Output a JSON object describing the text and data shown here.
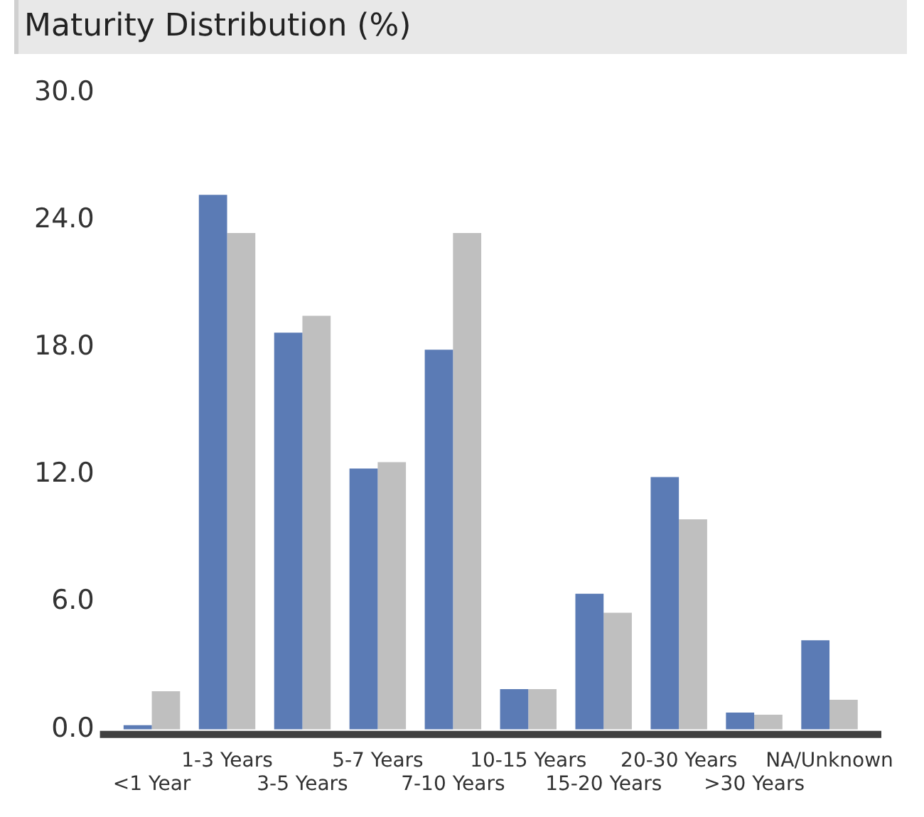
{
  "chart_data": {
    "type": "bar",
    "title": "Maturity Distribution (%)",
    "categories": [
      "<1 Year",
      "1-3 Years",
      "3-5 Years",
      "5-7 Years",
      "7-10 Years",
      "10-15 Years",
      "15-20 Years",
      "20-30 Years",
      ">30 Years",
      "NA/Unknown"
    ],
    "series": [
      {
        "color": "#5b7bb5",
        "values": [
          0.2,
          25.2,
          18.7,
          12.3,
          17.9,
          1.9,
          6.4,
          11.9,
          0.8,
          4.2
        ]
      },
      {
        "color": "#bfbfbf",
        "values": [
          1.8,
          23.4,
          19.5,
          12.6,
          23.4,
          1.9,
          5.5,
          9.9,
          0.7,
          1.4
        ]
      }
    ],
    "ylim": [
      0,
      30
    ],
    "yticks": [
      {
        "value": 0,
        "label": "0.0"
      },
      {
        "value": 6,
        "label": "6.0"
      },
      {
        "value": 12,
        "label": "12.0"
      },
      {
        "value": 18,
        "label": "18.0"
      },
      {
        "value": 24,
        "label": "24.0"
      },
      {
        "value": 30,
        "label": "30.0"
      }
    ],
    "grid": false,
    "legend": false
  }
}
